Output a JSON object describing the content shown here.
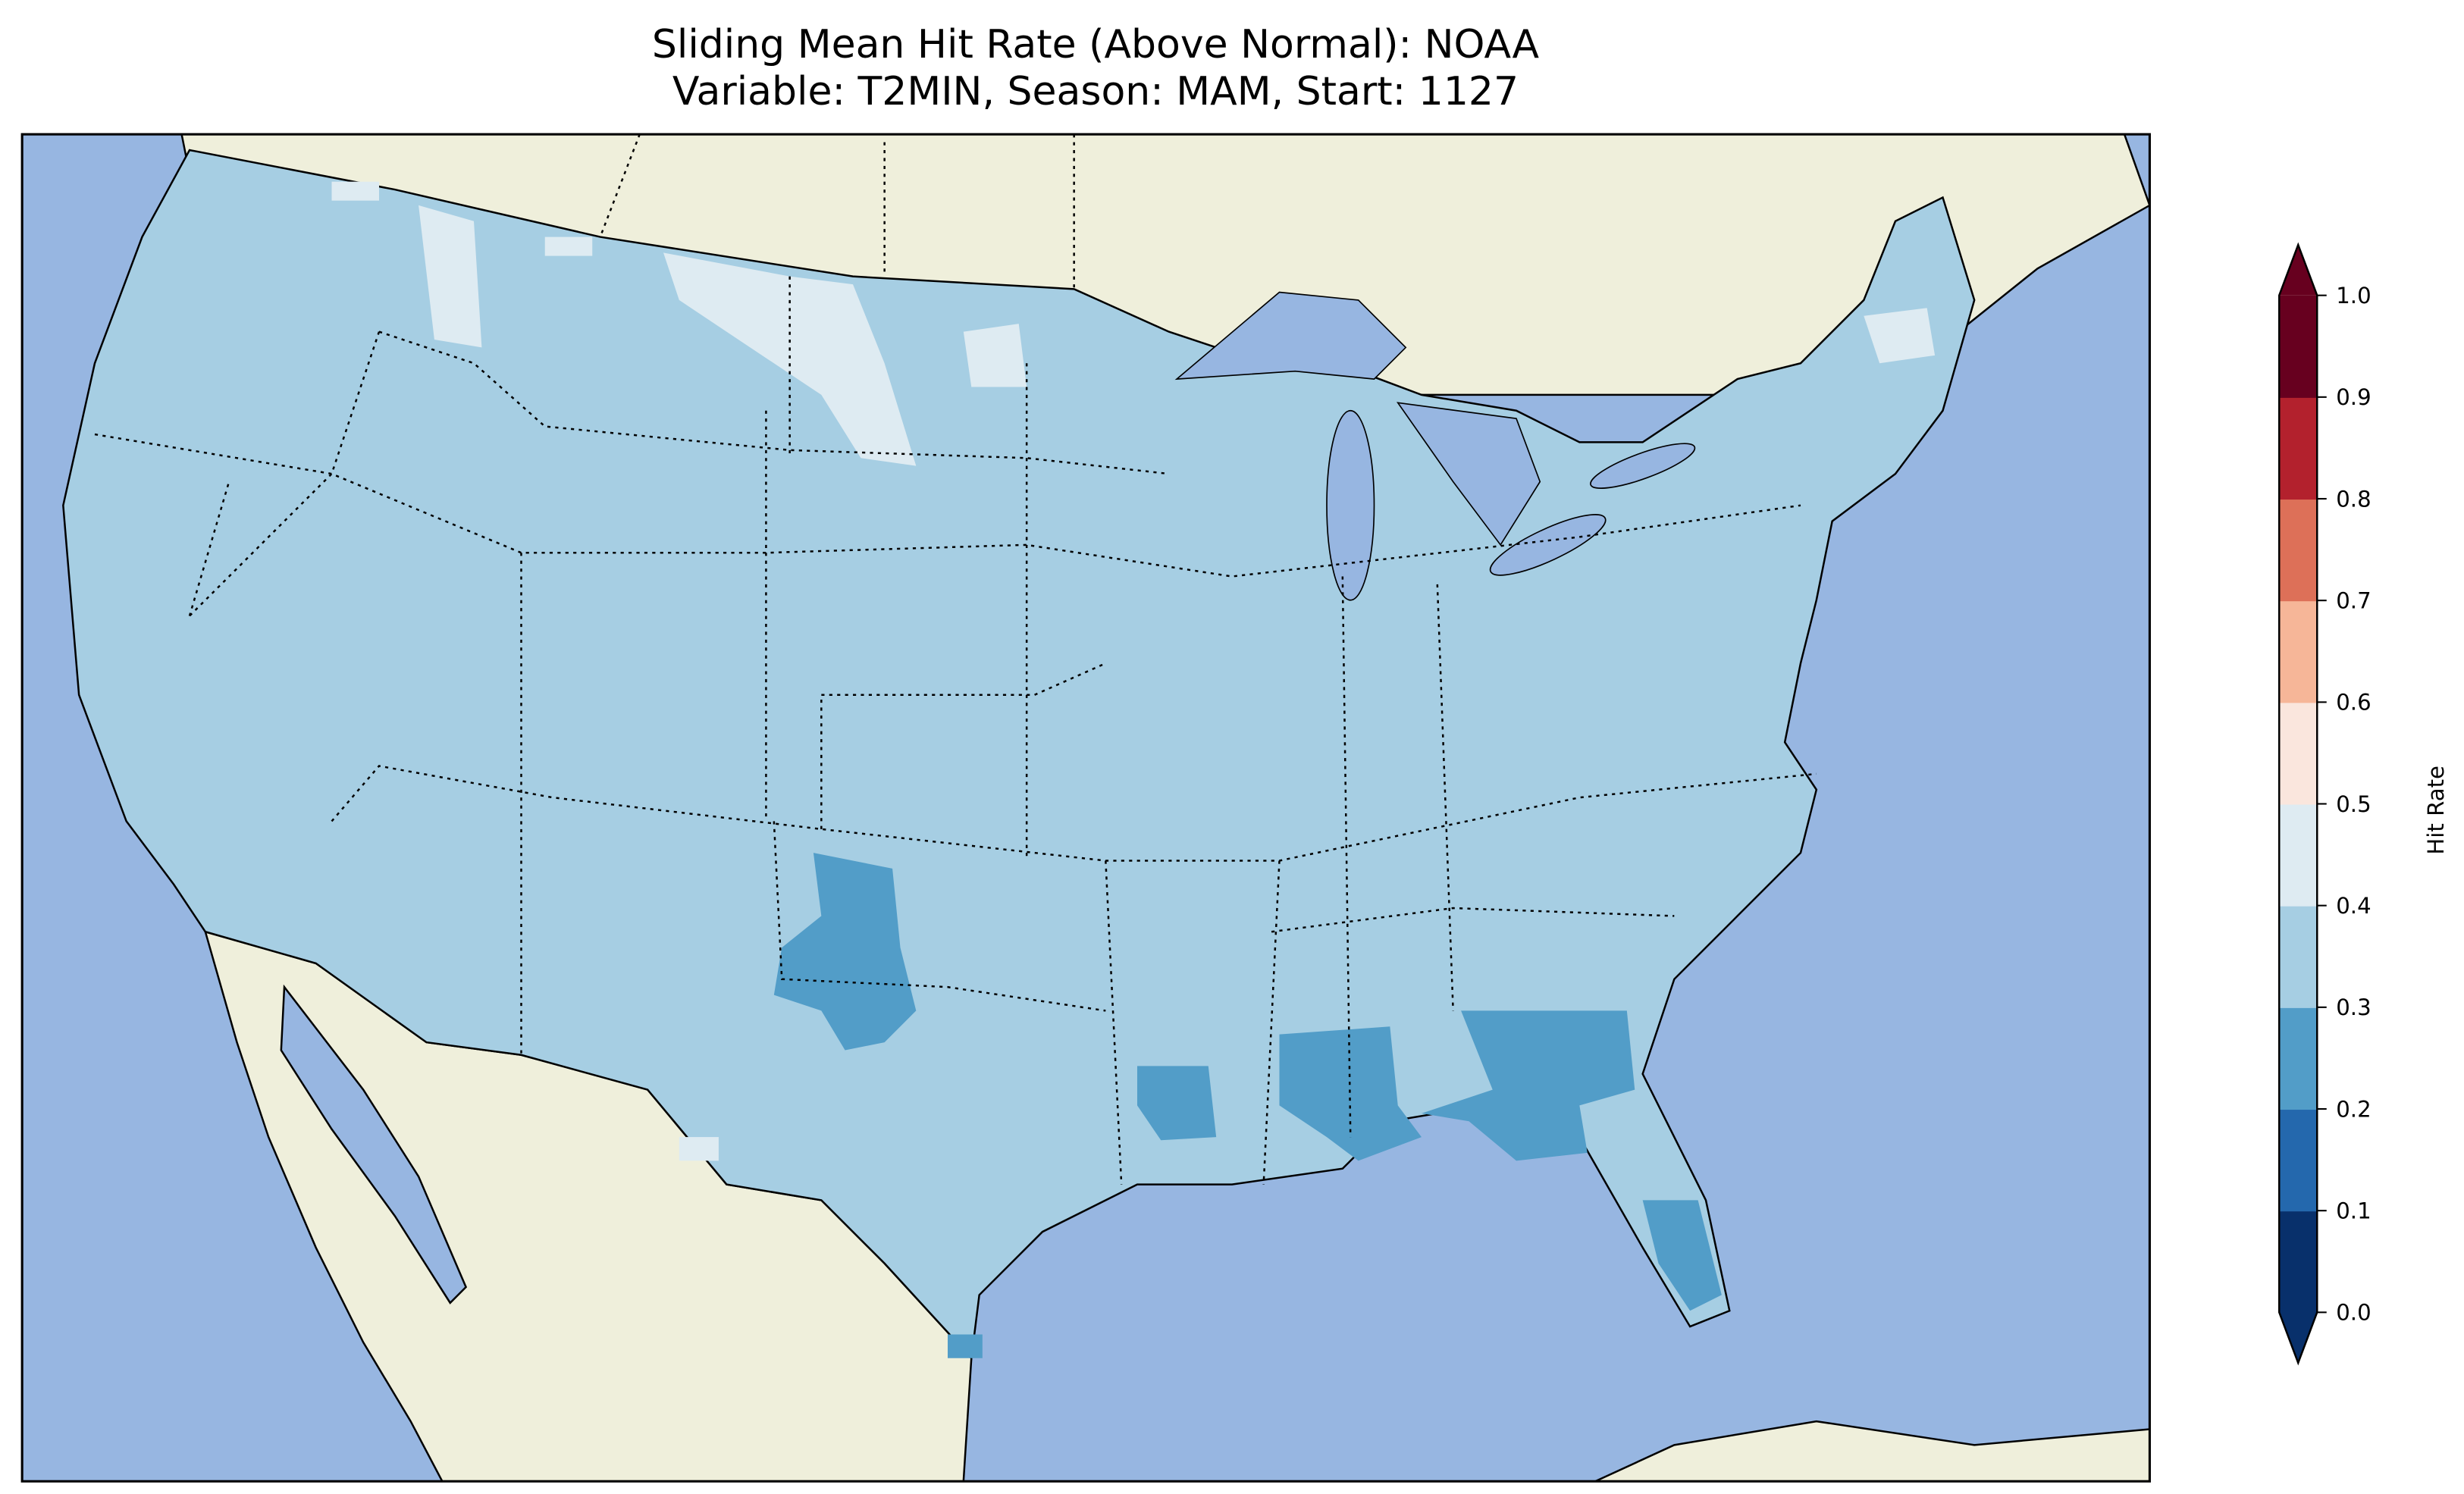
{
  "chart_data": {
    "type": "heatmap",
    "title_line1": "Sliding Mean Hit Rate (Above Normal): NOAA",
    "title_line2": "Variable: T2MIN, Season: MAM, Start: 1127",
    "region": "Contiguous United States",
    "colorbar": {
      "label": "Hit Rate",
      "range": [
        0.0,
        1.0
      ],
      "extend": "both",
      "ticks": [
        "0.0",
        "0.1",
        "0.2",
        "0.3",
        "0.4",
        "0.5",
        "0.6",
        "0.7",
        "0.8",
        "0.9",
        "1.0"
      ],
      "colors": [
        "#08306b",
        "#2468ad",
        "#529dc8",
        "#a6cee3",
        "#deebf2",
        "#fae6dd",
        "#f6b698",
        "#dd7058",
        "#b3212d",
        "#67001f"
      ]
    },
    "field_summary": [
      {
        "area": "Most of CONUS",
        "value_bin": [
          0.3,
          0.4
        ]
      },
      {
        "area": "Northern Montana / North Dakota / Idaho / Maine",
        "value_bin": [
          0.4,
          0.5
        ]
      },
      {
        "area": "West Texas",
        "value_bin": [
          0.2,
          0.3
        ]
      },
      {
        "area": "Louisiana / Mississippi / Alabama / Georgia / Florida",
        "value_bin": [
          0.2,
          0.3
        ]
      }
    ],
    "colors": {
      "ocean": "#97b6e1",
      "land": "#efefdb"
    }
  }
}
